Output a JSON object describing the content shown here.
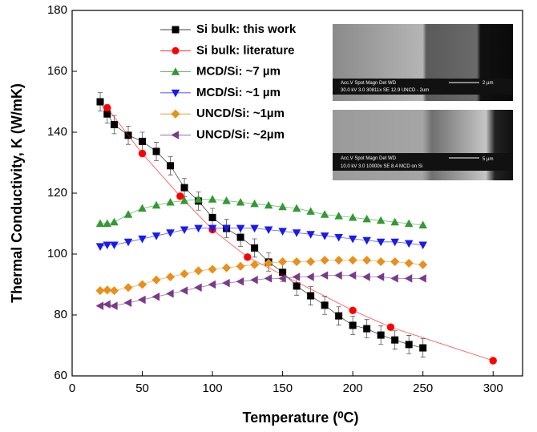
{
  "chart_data": {
    "type": "scatter",
    "x_label": "Temperature (⁰C)",
    "y_label": "Thermal Conductivity, K (W/mK)",
    "xlim": [
      0,
      321
    ],
    "xticks": [
      0,
      50,
      100,
      150,
      200,
      250,
      300
    ],
    "ylim": [
      60,
      180
    ],
    "yticks": [
      60,
      80,
      100,
      120,
      140,
      160,
      180
    ],
    "legend": "upper left",
    "series": [
      {
        "name": "Si bulk: this work",
        "color": "#000000",
        "marker": "square",
        "x": [
          20,
          25,
          30,
          40,
          50,
          60,
          70,
          80,
          90,
          100,
          110,
          120,
          130,
          140,
          150,
          160,
          170,
          180,
          190,
          200,
          210,
          220,
          230,
          240,
          250
        ],
        "values": [
          150,
          146,
          142.5,
          139,
          137,
          133.7,
          129,
          121.8,
          117.4,
          112,
          108.4,
          105.5,
          102,
          97.4,
          94,
          89.5,
          86.3,
          83.2,
          79.7,
          76.6,
          75.5,
          73.4,
          71.8,
          70.3,
          69.2
        ],
        "errors": [
          3,
          3,
          3,
          3,
          3,
          3,
          3,
          3,
          3,
          3,
          3,
          3,
          3,
          3,
          3,
          3,
          3,
          3,
          3,
          3,
          3,
          3,
          3,
          3,
          3
        ]
      },
      {
        "name": "Si bulk: literature",
        "color": "#ff0000",
        "marker": "circle",
        "x": [
          25,
          50,
          77,
          100,
          125,
          200,
          227,
          300
        ],
        "values": [
          148,
          133,
          119,
          108,
          99,
          81.5,
          76,
          65
        ]
      },
      {
        "name": "MCD/Si: ~7 µm",
        "color": "#339933",
        "marker": "triangle-up",
        "x": [
          20,
          25,
          30,
          40,
          50,
          60,
          70,
          80,
          90,
          100,
          110,
          120,
          130,
          140,
          150,
          160,
          170,
          180,
          190,
          200,
          210,
          220,
          230,
          240,
          250
        ],
        "values": [
          110,
          110,
          110.5,
          113,
          115,
          116,
          117,
          117.5,
          118,
          118,
          117.5,
          117,
          116.5,
          116,
          115.5,
          115,
          114,
          113,
          112.5,
          112,
          111.5,
          111,
          110.5,
          110,
          109.5
        ]
      },
      {
        "name": "MCD/Si: ~1 µm",
        "color": "#1a1aee",
        "marker": "triangle-down",
        "x": [
          20,
          25,
          30,
          40,
          50,
          60,
          70,
          80,
          90,
          100,
          110,
          120,
          130,
          140,
          150,
          160,
          170,
          180,
          190,
          200,
          210,
          220,
          230,
          240,
          250
        ],
        "values": [
          102.5,
          103,
          103,
          104,
          105,
          106,
          107,
          108,
          108.5,
          108.5,
          108.5,
          108.5,
          108.5,
          108,
          107.5,
          107,
          106.5,
          106,
          105.5,
          105,
          104.5,
          104,
          104,
          103.5,
          103
        ]
      },
      {
        "name": "UNCD/Si: ~1µm",
        "color": "#e8901a",
        "marker": "diamond",
        "x": [
          20,
          25,
          30,
          40,
          50,
          60,
          70,
          80,
          90,
          100,
          110,
          120,
          130,
          140,
          150,
          160,
          170,
          180,
          190,
          200,
          210,
          220,
          230,
          240,
          250
        ],
        "values": [
          88,
          88.2,
          88,
          89,
          90,
          91.5,
          92.5,
          93.5,
          94.5,
          95,
          95.5,
          96,
          96.5,
          97,
          97.5,
          97.5,
          97.5,
          98,
          98,
          98,
          98,
          97.5,
          97.5,
          97,
          96.5
        ]
      },
      {
        "name": "UNCD/Si: ~2µm",
        "color": "#7a3a8a",
        "marker": "triangle-left",
        "x": [
          20,
          25,
          30,
          40,
          50,
          60,
          70,
          80,
          90,
          100,
          110,
          120,
          130,
          140,
          150,
          160,
          170,
          180,
          190,
          200,
          210,
          220,
          230,
          240,
          250
        ],
        "values": [
          83,
          83.5,
          83,
          84,
          85,
          86,
          87,
          88,
          89,
          90,
          90.5,
          91,
          91.5,
          92,
          92,
          92.5,
          92.5,
          93,
          93,
          93,
          92.5,
          92.5,
          92,
          92,
          92
        ]
      }
    ],
    "insets": [
      {
        "header": "Acc.V  Spot Magn     Det  WD",
        "details": "30.0 kV 3.0   30811x   SE  12.9   UNCD - 2um",
        "scale": "2 µm"
      },
      {
        "header": "Acc.V  Spot Magn     Det  WD",
        "details": "10.0 kV 3.0   10000x   SE  8.4    MCD on Si",
        "scale": "5 µm"
      }
    ]
  }
}
